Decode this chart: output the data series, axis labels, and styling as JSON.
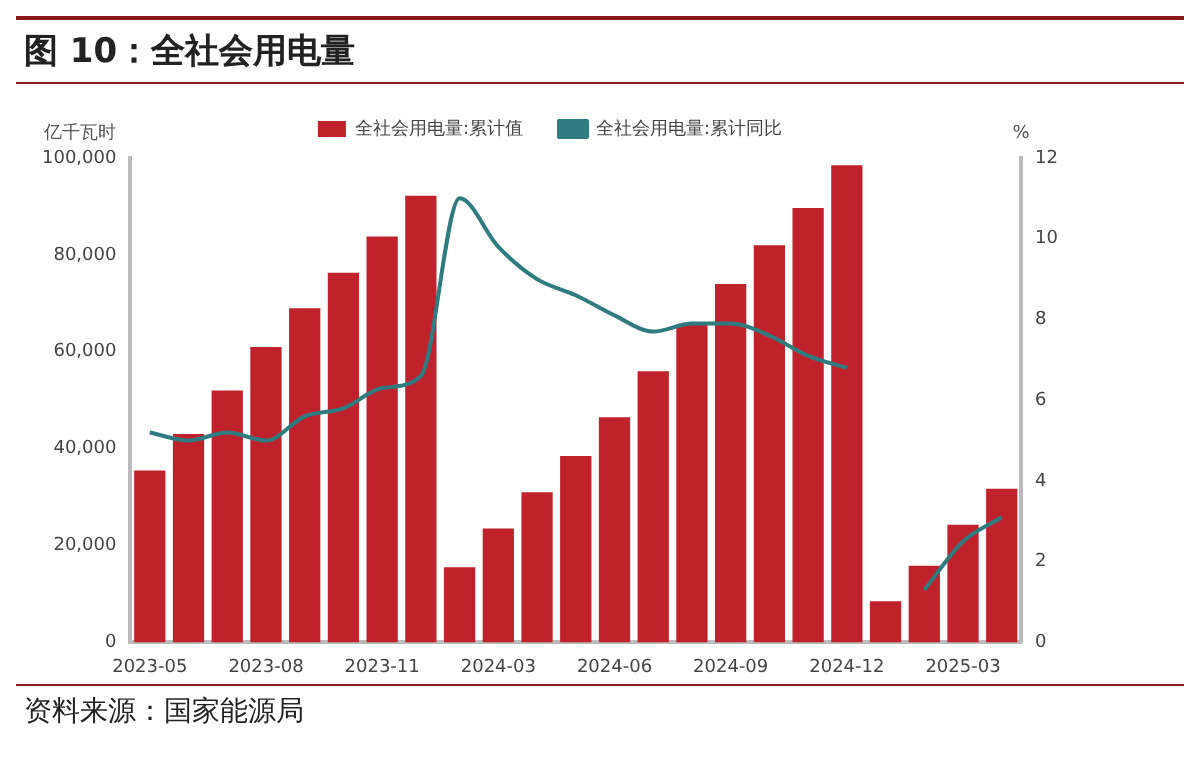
{
  "chart_data": {
    "type": "bar",
    "title": "图 10：全社会用电量",
    "ylabel": "亿千瓦时",
    "y2label": "%",
    "annotations": [
      "资料来源：国家能源局"
    ],
    "categories": [
      "2023-05",
      null,
      null,
      "2023-08",
      null,
      null,
      "2023-11",
      null,
      null,
      "2024-03",
      null,
      null,
      "2024-06",
      null,
      null,
      "2024-09",
      null,
      null,
      "2024-12",
      null,
      null,
      "2025-03",
      null
    ],
    "series": [
      {
        "name": "全社会用电量:累计值",
        "color": "#c0222c",
        "values": [
          35500,
          43000,
          52000,
          61000,
          69000,
          76300,
          83800,
          92200,
          15500,
          23500,
          31000,
          38500,
          46500,
          56000,
          65500,
          74000,
          82000,
          89700,
          98500,
          8500,
          15800,
          24300,
          31700
        ]
      },
      {
        "name": "全社会用电量:累计同比",
        "type": "line",
        "axis": "y2",
        "color": "#2e7b80",
        "values": [
          5.2,
          5.0,
          5.2,
          5.0,
          5.6,
          5.8,
          6.3,
          6.6,
          11.0,
          9.8,
          9.0,
          8.6,
          8.1,
          7.7,
          7.9,
          7.9,
          7.6,
          7.1,
          6.8,
          null,
          1.3,
          2.5,
          3.1
        ]
      }
    ],
    "ylim": [
      0,
      100000
    ],
    "yticks": [
      0,
      {
        "value": 20000,
        "label": "20,000"
      },
      {
        "value": 40000,
        "label": "40,000"
      },
      {
        "value": 60000,
        "label": "60,000"
      },
      {
        "value": 80000,
        "label": "80,000"
      },
      {
        "value": 100000,
        "label": "100,000"
      }
    ],
    "y2lim": [
      0,
      12
    ],
    "y2ticks": [
      0,
      2,
      4,
      6,
      8,
      10,
      12
    ],
    "grid": false,
    "legend": "top",
    "marker": "none",
    "line_style": "solid"
  }
}
